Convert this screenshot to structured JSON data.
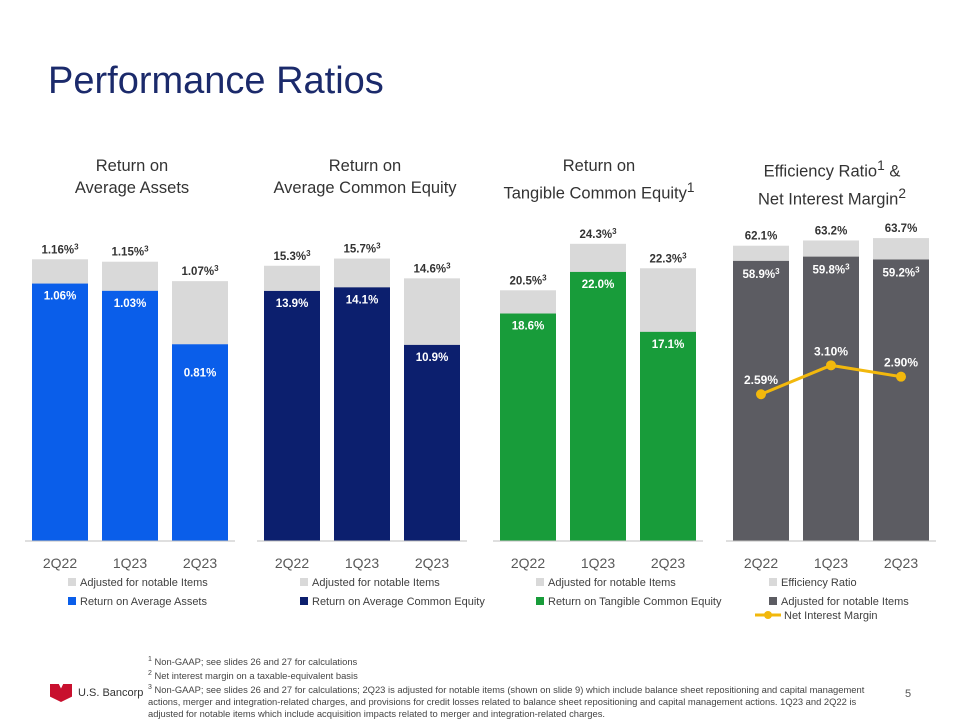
{
  "title": "Performance Ratios",
  "footnotes": [
    {
      "num": "1",
      "text": "Non-GAAP; see slides 26 and 27 for calculations"
    },
    {
      "num": "2",
      "text": "Net interest margin on a taxable-equivalent basis"
    },
    {
      "num": "3",
      "text": "Non-GAAP; see slides 26 and 27 for calculations; 2Q23 is adjusted for notable items (shown on slide 9) which include balance sheet repositioning and capital management actions, merger and integration-related charges, and provisions for credit losses related to balance sheet repositioning and capital management actions. 1Q23 and 2Q22 is adjusted for notable items which include acquisition impacts related to merger and integration-related charges."
    }
  ],
  "logo_text": "U.S. Bancorp",
  "page_number": "5",
  "colors": {
    "adjusted": "#d9d9d9",
    "roa": "#0a5eea",
    "roce": "#0c1f6e",
    "rotce": "#189c3a",
    "efficiency": "#5c5c62",
    "nim": "#f2b80c",
    "title": "#1b2a6b"
  },
  "chart_data": [
    {
      "type": "bar",
      "title_lines": [
        "Return on",
        "Average Assets"
      ],
      "categories": [
        "2Q22",
        "1Q23",
        "2Q23"
      ],
      "series": [
        {
          "name": "Return on Average Assets",
          "values": [
            1.06,
            1.03,
            0.81
          ],
          "labels": [
            "1.06%",
            "1.03%",
            "0.81%"
          ],
          "color": "#0a5eea"
        },
        {
          "name": "Adjusted for notable Items",
          "values": [
            1.16,
            1.15,
            1.07
          ],
          "labels": [
            "1.16%",
            "1.15%",
            "1.07%"
          ],
          "label_sup": "3",
          "color": "#d9d9d9"
        }
      ],
      "legend": [
        {
          "label": "Adjusted for notable Items",
          "color": "#d9d9d9"
        },
        {
          "label": "Return on Average Assets",
          "color": "#0a5eea"
        }
      ],
      "ylim": [
        0,
        1.4
      ]
    },
    {
      "type": "bar",
      "title_lines": [
        "Return on",
        "Average Common Equity"
      ],
      "categories": [
        "2Q22",
        "1Q23",
        "2Q23"
      ],
      "series": [
        {
          "name": "Return on Average Common Equity",
          "values": [
            13.9,
            14.1,
            10.9
          ],
          "labels": [
            "13.9%",
            "14.1%",
            "10.9%"
          ],
          "color": "#0c1f6e"
        },
        {
          "name": "Adjusted for notable Items",
          "values": [
            15.3,
            15.7,
            14.6
          ],
          "labels": [
            "15.3%",
            "15.7%",
            "14.6%"
          ],
          "label_sup": "3",
          "color": "#d9d9d9"
        }
      ],
      "legend": [
        {
          "label": "Adjusted for notable Items",
          "color": "#d9d9d9"
        },
        {
          "label": "Return on Average Common Equity",
          "color": "#0c1f6e"
        }
      ],
      "ylim": [
        0,
        18.9
      ]
    },
    {
      "type": "bar",
      "title_lines": [
        "Return on",
        "Tangible Common Equity"
      ],
      "title_sup": "1",
      "categories": [
        "2Q22",
        "1Q23",
        "2Q23"
      ],
      "series": [
        {
          "name": "Return on Tangible Common Equity",
          "values": [
            18.6,
            22.0,
            17.1
          ],
          "labels": [
            "18.6%",
            "22.0%",
            "17.1%"
          ],
          "color": "#189c3a"
        },
        {
          "name": "Adjusted for notable Items",
          "values": [
            20.5,
            24.3,
            22.3
          ],
          "labels": [
            "20.5%",
            "24.3%",
            "22.3%"
          ],
          "label_sup": "3",
          "color": "#d9d9d9"
        }
      ],
      "legend": [
        {
          "label": "Adjusted for notable Items",
          "color": "#d9d9d9"
        },
        {
          "label": "Return on Tangible Common Equity",
          "color": "#189c3a"
        }
      ],
      "ylim": [
        0,
        27.8
      ]
    },
    {
      "type": "bar+line",
      "title_lines": [
        "Efficiency Ratio",
        "Net Interest Margin"
      ],
      "title_sups": [
        "1",
        "2"
      ],
      "title_joiner": " &",
      "categories": [
        "2Q22",
        "1Q23",
        "2Q23"
      ],
      "series": [
        {
          "name": "Adjusted for notable Items",
          "values": [
            58.9,
            59.8,
            59.2
          ],
          "labels": [
            "58.9%",
            "59.8%",
            "59.2%"
          ],
          "label_sup": "3",
          "color": "#5c5c62"
        },
        {
          "name": "Efficiency Ratio",
          "values": [
            62.1,
            63.2,
            63.7
          ],
          "labels": [
            "62.1%",
            "63.2%",
            "63.7%"
          ],
          "color": "#d9d9d9"
        }
      ],
      "line_series": {
        "name": "Net Interest Margin",
        "values": [
          2.59,
          3.1,
          2.9
        ],
        "labels": [
          "2.59%",
          "3.10%",
          "2.90%"
        ],
        "color": "#f2b80c"
      },
      "legend": [
        {
          "label": "Efficiency Ratio",
          "color": "#d9d9d9",
          "kind": "box"
        },
        {
          "label": "Adjusted for notable Items",
          "color": "#5c5c62",
          "kind": "box"
        },
        {
          "label": "Net Interest Margin",
          "color": "#f2b80c",
          "kind": "line"
        }
      ],
      "ylim": [
        0,
        71.5
      ],
      "line_ylim": [
        0,
        6.0
      ]
    }
  ]
}
